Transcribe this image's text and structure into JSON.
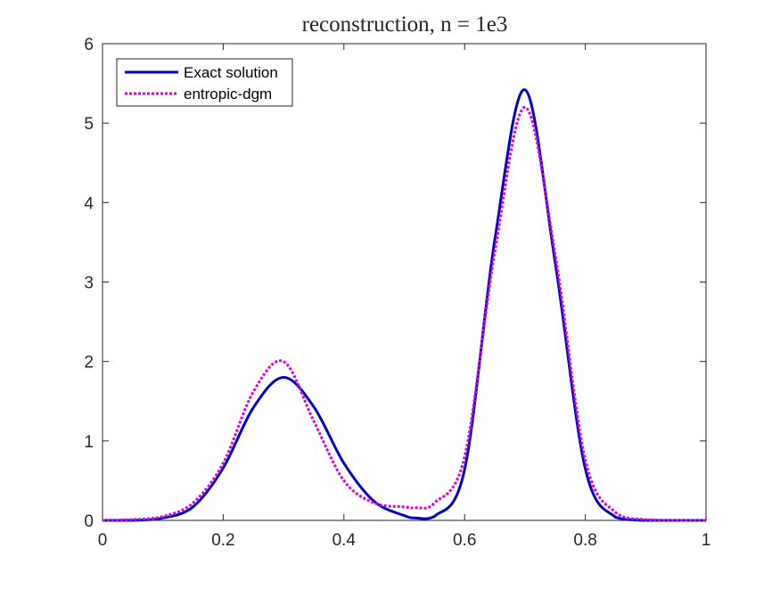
{
  "chart_data": {
    "type": "line",
    "title": "reconstruction, n = 1e3",
    "xlabel": "",
    "ylabel": "",
    "xlim": [
      0,
      1
    ],
    "ylim": [
      0,
      6
    ],
    "x_ticks": [
      0,
      0.2,
      0.4,
      0.6,
      0.8,
      1
    ],
    "x_tick_labels": [
      "0",
      "0.2",
      "0.4",
      "0.6",
      "0.8",
      "1"
    ],
    "y_ticks": [
      0,
      1,
      2,
      3,
      4,
      5,
      6
    ],
    "y_tick_labels": [
      "0",
      "1",
      "2",
      "3",
      "4",
      "5",
      "6"
    ],
    "grid": false,
    "legend_position": "top-left",
    "x": [
      0,
      0.05,
      0.1,
      0.15,
      0.2,
      0.25,
      0.3,
      0.35,
      0.4,
      0.45,
      0.5,
      0.52,
      0.55,
      0.6,
      0.65,
      0.7,
      0.75,
      0.8,
      0.85,
      0.9,
      0.95,
      1
    ],
    "series": [
      {
        "name": "Exact solution",
        "color": "#0000c0",
        "style": "solid",
        "values": [
          0.0,
          0.0,
          0.03,
          0.17,
          0.66,
          1.42,
          1.8,
          1.43,
          0.72,
          0.24,
          0.06,
          0.03,
          0.05,
          0.64,
          3.53,
          5.42,
          3.25,
          0.65,
          0.04,
          0.0,
          0.0,
          0.0
        ]
      },
      {
        "name": "entropic-dgm",
        "color": "#dd00dd",
        "style": "dotted",
        "values": [
          0.0,
          0.01,
          0.05,
          0.22,
          0.72,
          1.62,
          2.0,
          1.25,
          0.5,
          0.22,
          0.17,
          0.16,
          0.22,
          0.8,
          3.38,
          5.2,
          3.35,
          0.76,
          0.1,
          0.01,
          0.0,
          0.0
        ]
      }
    ]
  }
}
